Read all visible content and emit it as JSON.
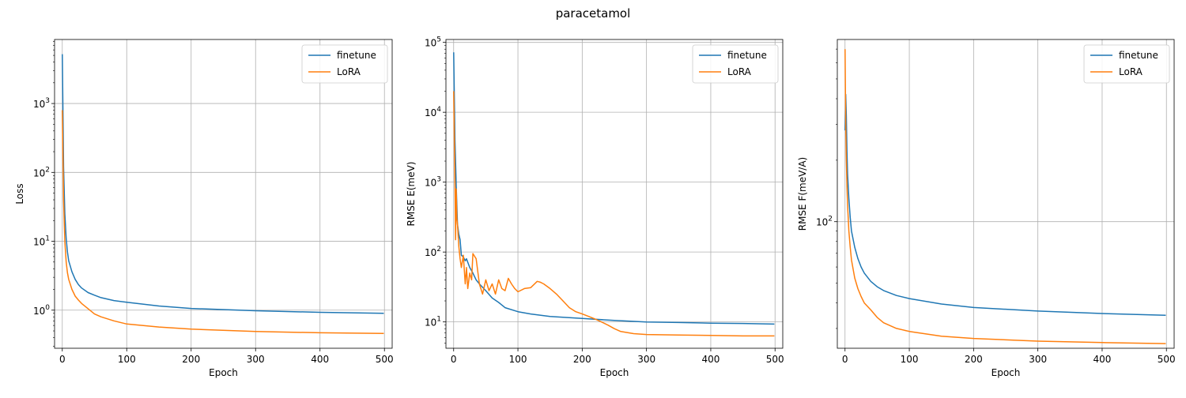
{
  "figure": {
    "suptitle": "paracetamol"
  },
  "colors": {
    "finetune": "#1f77b4",
    "LoRA": "#ff7f0e",
    "grid": "#b0b0b0"
  },
  "chart_data": [
    {
      "type": "line",
      "xlabel": "Epoch",
      "ylabel": "Loss",
      "yscale": "log",
      "xlim": [
        -12,
        512
      ],
      "ylim": [
        0.28,
        8500
      ],
      "xticks": [
        0,
        100,
        200,
        300,
        400,
        500
      ],
      "yticks": [
        1,
        10,
        100,
        1000
      ],
      "ytick_labels": [
        "10^0",
        "10^1",
        "10^2",
        "10^3"
      ],
      "grid": true,
      "legend": "top-right",
      "series": [
        {
          "name": "finetune",
          "x": [
            0,
            2,
            4,
            6,
            8,
            10,
            15,
            20,
            25,
            30,
            40,
            50,
            60,
            80,
            100,
            150,
            200,
            300,
            400,
            499
          ],
          "y": [
            5200,
            120,
            25,
            11,
            7,
            5.2,
            3.6,
            2.8,
            2.35,
            2.1,
            1.8,
            1.65,
            1.52,
            1.38,
            1.3,
            1.15,
            1.06,
            0.98,
            0.93,
            0.9
          ]
        },
        {
          "name": "LoRA",
          "x": [
            0,
            2,
            4,
            6,
            8,
            10,
            15,
            20,
            25,
            30,
            40,
            50,
            60,
            80,
            100,
            150,
            200,
            300,
            400,
            499
          ],
          "y": [
            800,
            40,
            10,
            5,
            3.5,
            2.8,
            2.0,
            1.6,
            1.4,
            1.25,
            1.05,
            0.88,
            0.8,
            0.7,
            0.63,
            0.57,
            0.53,
            0.49,
            0.47,
            0.46
          ]
        }
      ]
    },
    {
      "type": "line",
      "xlabel": "Epoch",
      "ylabel": "RMSE E(meV)",
      "yscale": "log",
      "xlim": [
        -12,
        512
      ],
      "ylim": [
        4.2,
        110000
      ],
      "xticks": [
        0,
        100,
        200,
        300,
        400,
        500
      ],
      "yticks": [
        10,
        100,
        1000,
        10000,
        100000
      ],
      "ytick_labels": [
        "10^1",
        "10^2",
        "10^3",
        "10^4",
        "10^5"
      ],
      "grid": true,
      "legend": "top-right",
      "series": [
        {
          "name": "finetune",
          "x": [
            0,
            2,
            4,
            6,
            8,
            10,
            12,
            15,
            18,
            20,
            25,
            30,
            35,
            40,
            50,
            60,
            70,
            80,
            100,
            120,
            150,
            180,
            200,
            250,
            300,
            350,
            400,
            450,
            499
          ],
          "y": [
            72000,
            4000,
            900,
            250,
            180,
            150,
            90,
            85,
            75,
            80,
            60,
            50,
            40,
            35,
            28,
            22,
            19,
            16,
            14,
            13,
            12,
            11.5,
            11.2,
            10.5,
            10,
            9.8,
            9.6,
            9.5,
            9.3
          ]
        },
        {
          "name": "LoRA",
          "x": [
            0,
            2,
            3,
            4,
            5,
            6,
            8,
            10,
            12,
            15,
            18,
            20,
            22,
            25,
            28,
            30,
            35,
            40,
            45,
            50,
            55,
            60,
            65,
            70,
            75,
            80,
            85,
            90,
            95,
            100,
            110,
            120,
            130,
            135,
            140,
            150,
            160,
            170,
            180,
            190,
            200,
            210,
            220,
            230,
            240,
            250,
            260,
            280,
            300,
            350,
            400,
            450,
            499
          ],
          "y": [
            20000,
            1000,
            150,
            800,
            300,
            250,
            120,
            80,
            60,
            90,
            35,
            60,
            30,
            50,
            40,
            95,
            80,
            35,
            25,
            40,
            28,
            35,
            25,
            40,
            30,
            28,
            42,
            35,
            30,
            27,
            30,
            31,
            38,
            37,
            35,
            30,
            25,
            20,
            16,
            14,
            13,
            12,
            11,
            10,
            9,
            8,
            7.3,
            6.8,
            6.6,
            6.5,
            6.4,
            6.3,
            6.3
          ]
        }
      ]
    },
    {
      "type": "line",
      "xlabel": "Epoch",
      "ylabel": "RMSE F(meV/A)",
      "yscale": "log",
      "xlim": [
        -12,
        512
      ],
      "ylim": [
        24,
        780
      ],
      "xticks": [
        0,
        100,
        200,
        300,
        400,
        500
      ],
      "yticks": [
        100
      ],
      "ytick_labels": [
        "10^2"
      ],
      "grid": true,
      "legend": "top-right",
      "series": [
        {
          "name": "finetune",
          "x": [
            0,
            1,
            2,
            3,
            4,
            6,
            8,
            10,
            15,
            20,
            25,
            30,
            40,
            50,
            60,
            80,
            100,
            150,
            200,
            300,
            400,
            499
          ],
          "y": [
            280,
            420,
            330,
            220,
            170,
            130,
            105,
            90,
            75,
            66,
            60,
            56,
            51,
            48,
            46,
            43.5,
            42,
            39.5,
            38,
            36.5,
            35.5,
            34.8
          ]
        },
        {
          "name": "LoRA",
          "x": [
            0,
            1,
            2,
            3,
            4,
            6,
            8,
            10,
            15,
            20,
            25,
            30,
            40,
            50,
            60,
            80,
            100,
            150,
            200,
            300,
            400,
            499
          ],
          "y": [
            700,
            300,
            200,
            150,
            120,
            90,
            75,
            65,
            53,
            47,
            43,
            40,
            37,
            34,
            32,
            30,
            29,
            27.5,
            26.8,
            26,
            25.6,
            25.3
          ]
        }
      ]
    }
  ]
}
